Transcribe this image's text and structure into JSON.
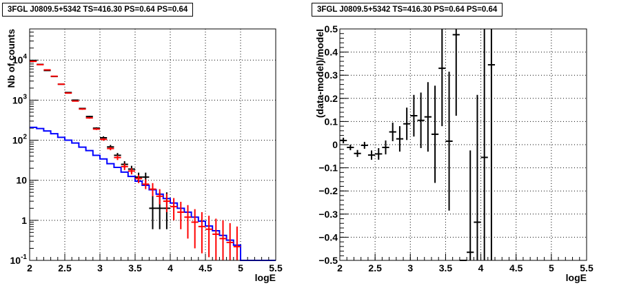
{
  "chart_data": [
    {
      "type": "line",
      "title": "3FGL J0809.5+5342 TS=416.30 PS=0.64 PS=0.64",
      "xlabel": "logE",
      "ylabel": "Nb of counts",
      "xlim": [
        2,
        5.5
      ],
      "ylim": [
        0.1,
        60000
      ],
      "yscale": "log",
      "grid": true,
      "x_ticks": [
        "2",
        "2.5",
        "3",
        "3.5",
        "4",
        "4.5",
        "5",
        "5.5"
      ],
      "y_ticks": [
        "10^{-1}",
        "1",
        "10",
        "10^{2}",
        "10^{3}",
        "10^{4}"
      ],
      "series": [
        {
          "color": "#0000ff",
          "style": "step",
          "bin_edges": [
            2.0,
            2.1,
            2.2,
            2.3,
            2.4,
            2.5,
            2.6,
            2.7,
            2.8,
            2.9,
            3.0,
            3.1,
            3.2,
            3.3,
            3.4,
            3.5,
            3.6,
            3.7,
            3.8,
            3.9,
            4.0,
            4.1,
            4.2,
            4.3,
            4.4,
            4.5,
            4.6,
            4.7,
            4.8,
            4.9,
            5.0,
            5.1,
            5.2,
            5.3,
            5.4,
            5.5
          ],
          "values": [
            210,
            195,
            170,
            145,
            118,
            100,
            85,
            67,
            55,
            42,
            34,
            26,
            21,
            16,
            12.5,
            9.5,
            7.5,
            5.8,
            4.5,
            3.5,
            2.7,
            2.0,
            1.6,
            1.2,
            0.95,
            0.72,
            0.55,
            0.42,
            0.32,
            0.24,
            0.1,
            0.1,
            0.1,
            0.1,
            0.1
          ]
        },
        {
          "color": "#000000",
          "style": "errorbar",
          "x": [
            2.05,
            2.15,
            2.25,
            2.35,
            2.45,
            2.55,
            2.65,
            2.75,
            2.85,
            2.95,
            3.05,
            3.15,
            3.25,
            3.35,
            3.45,
            3.55,
            3.65,
            3.75,
            3.85,
            3.95
          ],
          "y": [
            9500,
            7800,
            5500,
            3900,
            2500,
            1550,
            1000,
            620,
            390,
            200,
            115,
            68,
            42,
            25,
            19,
            12,
            12,
            2,
            2,
            2
          ],
          "y_low": [
            9400,
            7700,
            5430,
            3840,
            2450,
            1510,
            970,
            600,
            375,
            190,
            105,
            60,
            36,
            20,
            15,
            9,
            8.5,
            0.6,
            0.6,
            0.6
          ],
          "y_high": [
            9600,
            7900,
            5570,
            3960,
            2550,
            1590,
            1030,
            640,
            405,
            210,
            125,
            76,
            48,
            30,
            23,
            15.5,
            15.5,
            5,
            5,
            5
          ]
        },
        {
          "color": "#ff0000",
          "style": "errorbar",
          "x": [
            2.05,
            2.15,
            2.25,
            2.35,
            2.45,
            2.55,
            2.65,
            2.75,
            2.85,
            2.95,
            3.05,
            3.15,
            3.25,
            3.35,
            3.45,
            3.55,
            3.65,
            3.75,
            3.85,
            3.95,
            4.05,
            4.15,
            4.25,
            4.35,
            4.45,
            4.55,
            4.65,
            4.75,
            4.85,
            4.95
          ],
          "y": [
            9300,
            7700,
            5700,
            3950,
            2500,
            1500,
            950,
            600,
            360,
            190,
            105,
            62,
            37,
            22,
            17,
            11,
            8,
            6,
            4,
            3,
            2.2,
            1.6,
            1.2,
            0.9,
            0.7,
            0.6,
            0.45,
            0.35,
            0.28,
            0.22
          ],
          "y_low": [
            9200,
            7610,
            5620,
            3890,
            2450,
            1460,
            920,
            575,
            345,
            180,
            97,
            56,
            32,
            18,
            14,
            8.5,
            6,
            4,
            2.5,
            1.6,
            1,
            0.6,
            0.35,
            0.2,
            0.15,
            0.12,
            0.1,
            0.1,
            0.1,
            0.1
          ],
          "y_high": [
            9400,
            7790,
            5780,
            4010,
            2550,
            1540,
            980,
            625,
            375,
            200,
            113,
            68,
            42,
            26,
            20,
            13.5,
            10.5,
            8.5,
            6,
            4.6,
            3.6,
            2.9,
            2.4,
            1.9,
            1.6,
            1.3,
            1.1,
            1,
            0.85,
            0.7
          ]
        }
      ]
    },
    {
      "type": "scatter",
      "title": "3FGL J0809.5+5342 TS=416.30 PS=0.64 PS=0.64",
      "xlabel": "logE",
      "ylabel": "(data-model)/model",
      "xlim": [
        2,
        5.5
      ],
      "ylim": [
        -0.5,
        0.5
      ],
      "grid": true,
      "x_ticks": [
        "2",
        "2.5",
        "3",
        "3.5",
        "4",
        "4.5",
        "5",
        "5.5"
      ],
      "y_ticks": [
        "−0.5",
        "−0.4",
        "−0.3",
        "−0.2",
        "−0.1",
        "0",
        "0.1",
        "0.2",
        "0.3",
        "0.4",
        "0.5"
      ],
      "series": [
        {
          "color": "#000000",
          "style": "errorbar",
          "x": [
            2.05,
            2.15,
            2.25,
            2.35,
            2.45,
            2.55,
            2.65,
            2.75,
            2.85,
            2.95,
            3.05,
            3.15,
            3.25,
            3.35,
            3.45,
            3.55,
            3.65,
            3.75,
            3.85,
            3.95,
            4.05,
            4.15
          ],
          "y": [
            0.018,
            -0.012,
            -0.038,
            -0.003,
            -0.045,
            -0.04,
            -0.012,
            0.055,
            0.025,
            0.09,
            0.125,
            0.105,
            0.12,
            0.045,
            0.33,
            0.015,
            0.475,
            -0.5,
            -0.465,
            -0.335,
            -0.055,
            0.345
          ],
          "y_err": [
            0.012,
            0.012,
            0.015,
            0.015,
            0.02,
            0.025,
            0.03,
            0.04,
            0.055,
            0.07,
            0.09,
            0.12,
            0.15,
            0.21,
            0.25,
            0.3,
            0.35,
            0,
            0.44,
            0.55,
            0.7,
            0.85
          ]
        }
      ]
    }
  ]
}
